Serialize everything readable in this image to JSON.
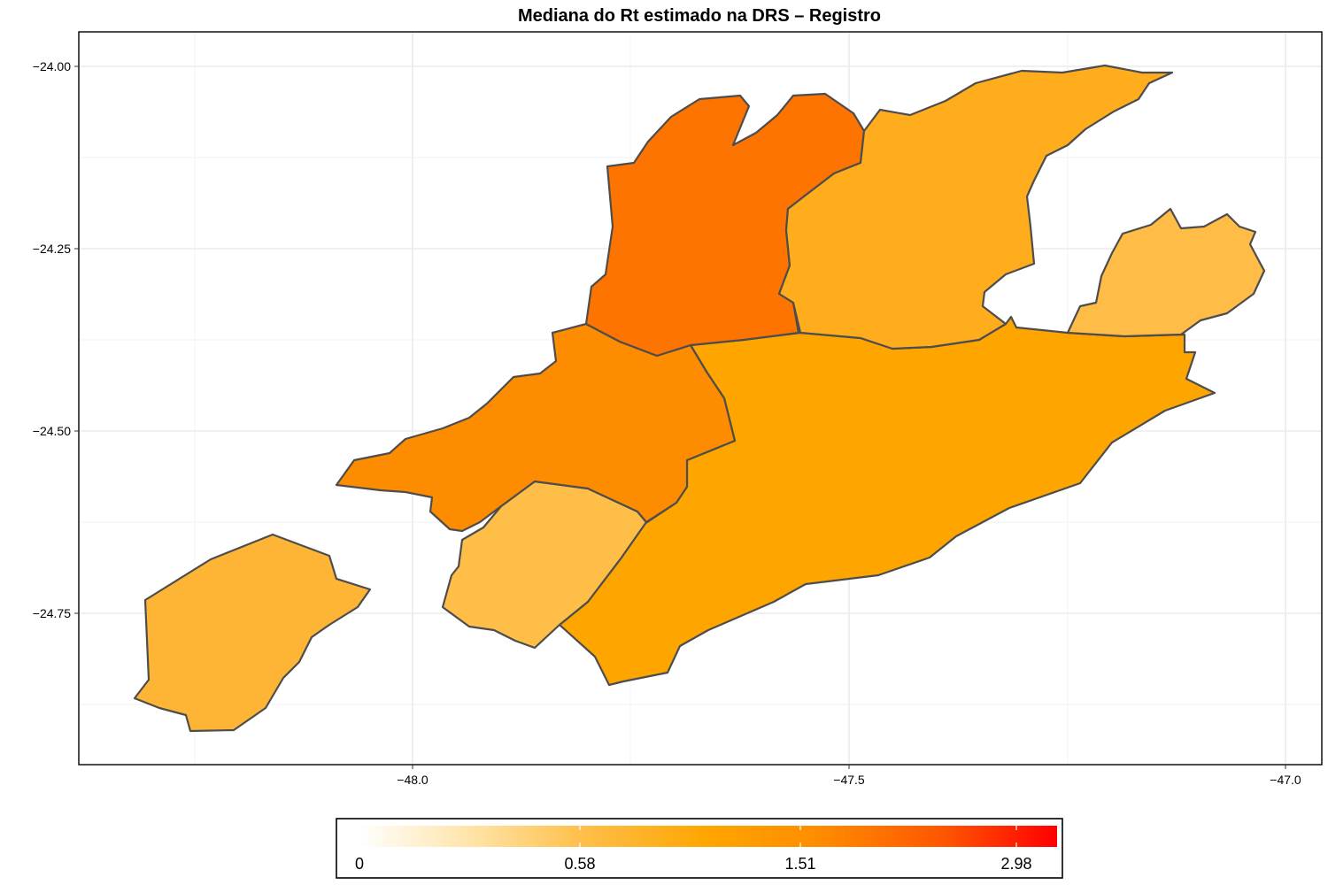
{
  "map": {
    "title": "Mediana do Rt estimado na DRS – Registro",
    "y_ticks": [
      "−24.00",
      "−24.25",
      "−24.50",
      "−24.75"
    ],
    "x_ticks": [
      "−48.0",
      "−47.5",
      "−47.0"
    ],
    "regions": [
      {
        "name": "far-west",
        "fill": "#FEB536"
      },
      {
        "name": "south-west-center",
        "fill": "#FFBE47"
      },
      {
        "name": "west-center",
        "fill": "#FE8C00"
      },
      {
        "name": "north-center",
        "fill": "#FE7400"
      },
      {
        "name": "north-east",
        "fill": "#FFAD1D"
      },
      {
        "name": "south-coast",
        "fill": "#FFA500"
      },
      {
        "name": "east",
        "fill": "#FFBC47"
      }
    ]
  },
  "legend": {
    "title": "",
    "colors": [
      "#FFFFFF",
      "#FFE4A8",
      "#FFBF4A",
      "#FFA500",
      "#FF8C00",
      "#FF5500",
      "#FF0000"
    ],
    "labels": [
      "0",
      "0.58",
      "1.51",
      "2.98"
    ]
  }
}
